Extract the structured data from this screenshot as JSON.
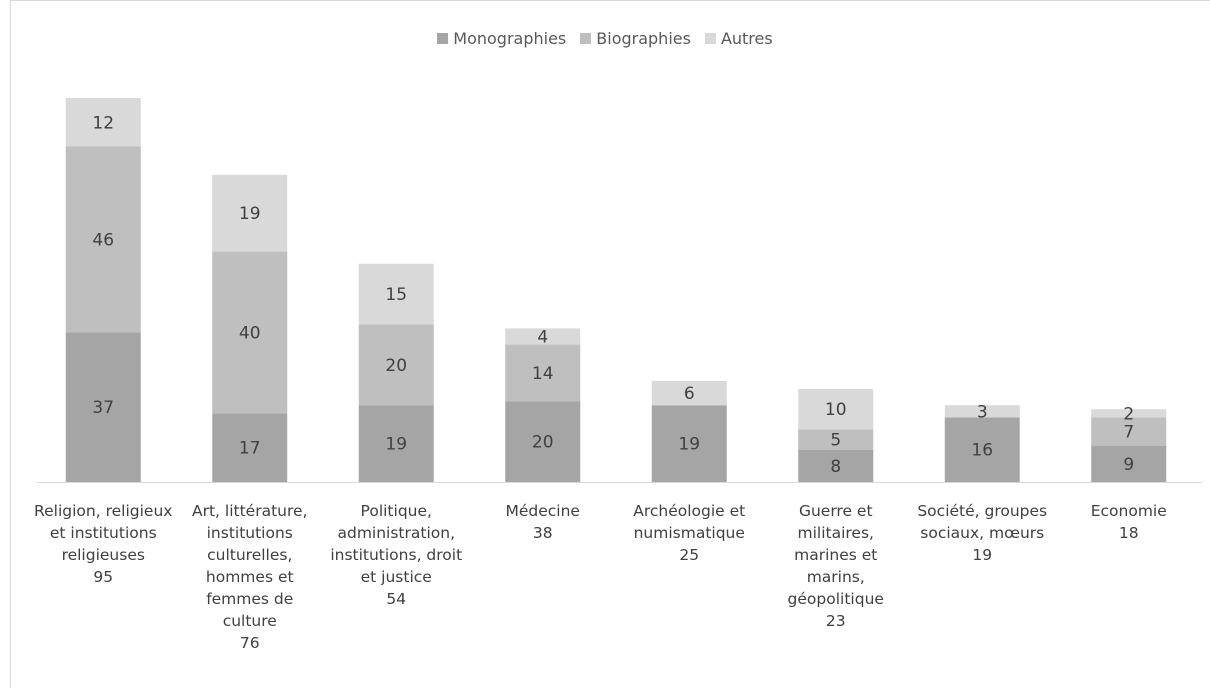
{
  "chart_data": {
    "type": "stacked_bar",
    "categories": [
      "Religion, religieux et institutions religieuses",
      "Art, littérature, institutions culturelles, hommes et femmes de culture",
      "Politique, administration, institutions, droit et justice",
      "Médecine",
      "Archéologie et numismatique",
      "Guerre et militaires, marines et marins, géopolitique",
      "Société, groupes sociaux, mœurs",
      "Economie"
    ],
    "totals": [
      95,
      76,
      54,
      38,
      25,
      23,
      19,
      18
    ],
    "series": [
      {
        "name": "Monographies",
        "color": "#a5a5a5",
        "values": [
          37,
          17,
          19,
          20,
          19,
          8,
          16,
          9
        ]
      },
      {
        "name": "Biographies",
        "color": "#bfbfbf",
        "values": [
          46,
          40,
          20,
          14,
          null,
          5,
          null,
          7
        ]
      },
      {
        "name": "Autres",
        "color": "#d9d9d9",
        "values": [
          12,
          19,
          15,
          4,
          6,
          10,
          3,
          2
        ]
      }
    ],
    "legend": "top"
  }
}
